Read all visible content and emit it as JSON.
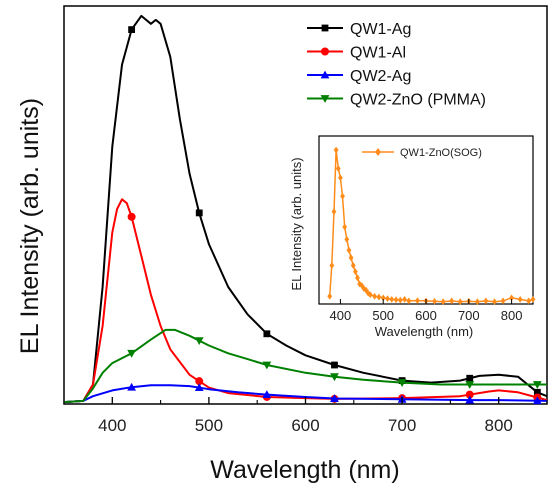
{
  "chart_data": [
    {
      "type": "line",
      "xlabel": "Wavelength (nm)",
      "ylabel": "EL Intensity (arb. units)",
      "xlim": [
        350,
        850
      ],
      "ylim": [
        0,
        1.0
      ],
      "x_ticks": [
        "400",
        "500",
        "600",
        "700",
        "800"
      ],
      "legend_position": "top-right",
      "series": [
        {
          "name": "QW1-Ag",
          "color": "#000000",
          "marker": "square",
          "x": [
            350,
            370,
            380,
            390,
            400,
            410,
            420,
            430,
            440,
            445,
            450,
            460,
            470,
            480,
            490,
            500,
            520,
            540,
            560,
            580,
            600,
            630,
            660,
            700,
            730,
            760,
            780,
            800,
            820,
            840,
            850
          ],
          "y": [
            0.005,
            0.008,
            0.05,
            0.3,
            0.66,
            0.87,
            0.96,
            0.995,
            0.975,
            0.985,
            0.975,
            0.89,
            0.73,
            0.59,
            0.49,
            0.41,
            0.3,
            0.23,
            0.18,
            0.15,
            0.125,
            0.1,
            0.08,
            0.06,
            0.055,
            0.06,
            0.072,
            0.075,
            0.07,
            0.03,
            0.02
          ],
          "marker_x": [
            420,
            490,
            560,
            630,
            700,
            770,
            840
          ]
        },
        {
          "name": "QW1-Al",
          "color": "#ff0000",
          "marker": "circle",
          "x": [
            350,
            370,
            380,
            390,
            400,
            405,
            410,
            415,
            420,
            430,
            440,
            450,
            460,
            480,
            500,
            520,
            560,
            600,
            630,
            700,
            760,
            790,
            800,
            820,
            850
          ],
          "y": [
            0.005,
            0.008,
            0.05,
            0.2,
            0.44,
            0.5,
            0.525,
            0.515,
            0.48,
            0.38,
            0.28,
            0.2,
            0.14,
            0.075,
            0.042,
            0.028,
            0.018,
            0.015,
            0.013,
            0.015,
            0.02,
            0.032,
            0.035,
            0.03,
            0.01
          ],
          "marker_x": [
            420,
            490,
            560,
            630,
            700,
            770,
            840
          ]
        },
        {
          "name": "QW2-Ag",
          "color": "#0000ff",
          "marker": "triangle-up",
          "x": [
            350,
            370,
            380,
            400,
            420,
            440,
            460,
            480,
            500,
            530,
            560,
            600,
            630,
            700,
            770,
            800,
            850
          ],
          "y": [
            0.005,
            0.008,
            0.02,
            0.035,
            0.043,
            0.048,
            0.048,
            0.046,
            0.038,
            0.03,
            0.024,
            0.018,
            0.014,
            0.012,
            0.01,
            0.01,
            0.008
          ],
          "marker_x": [
            420,
            490,
            560,
            630,
            700,
            770,
            840
          ]
        },
        {
          "name": "QW2-ZnO (PMMA)",
          "color": "#008000",
          "marker": "triangle-down",
          "x": [
            350,
            370,
            380,
            390,
            400,
            420,
            440,
            455,
            465,
            480,
            500,
            520,
            540,
            560,
            600,
            630,
            660,
            700,
            740,
            770,
            800,
            840,
            850
          ],
          "y": [
            0.005,
            0.008,
            0.04,
            0.08,
            0.105,
            0.13,
            0.165,
            0.19,
            0.19,
            0.175,
            0.15,
            0.13,
            0.115,
            0.1,
            0.08,
            0.07,
            0.062,
            0.055,
            0.05,
            0.05,
            0.05,
            0.05,
            0.05
          ],
          "marker_x": [
            420,
            490,
            560,
            630,
            700,
            770,
            840
          ]
        }
      ]
    },
    {
      "type": "line",
      "inset": true,
      "xlabel": "Wavelength (nm)",
      "ylabel": "EL Intensity (arb. units)",
      "xlim": [
        350,
        850
      ],
      "ylim": [
        0,
        1.0
      ],
      "x_ticks": [
        "400",
        "500",
        "600",
        "700",
        "800"
      ],
      "legend_position": "top-right",
      "series": [
        {
          "name": "QW1-ZnO(SOG)",
          "color": "#ff8c1a",
          "marker": "diamond",
          "x": [
            375,
            380,
            385,
            390,
            395,
            400,
            405,
            410,
            415,
            420,
            425,
            430,
            435,
            440,
            445,
            450,
            455,
            460,
            465,
            470,
            480,
            490,
            500,
            510,
            520,
            530,
            540,
            550,
            560,
            580,
            600,
            620,
            640,
            660,
            680,
            700,
            720,
            740,
            760,
            780,
            800,
            820,
            840,
            850
          ],
          "y": [
            0.05,
            0.25,
            0.6,
            1.0,
            0.88,
            0.82,
            0.7,
            0.5,
            0.42,
            0.35,
            0.3,
            0.25,
            0.21,
            0.17,
            0.13,
            0.12,
            0.1,
            0.09,
            0.07,
            0.06,
            0.05,
            0.045,
            0.04,
            0.035,
            0.03,
            0.028,
            0.025,
            0.03,
            0.02,
            0.022,
            0.02,
            0.018,
            0.015,
            0.02,
            0.015,
            0.018,
            0.015,
            0.02,
            0.015,
            0.02,
            0.04,
            0.03,
            0.02,
            0.03
          ]
        }
      ]
    }
  ]
}
